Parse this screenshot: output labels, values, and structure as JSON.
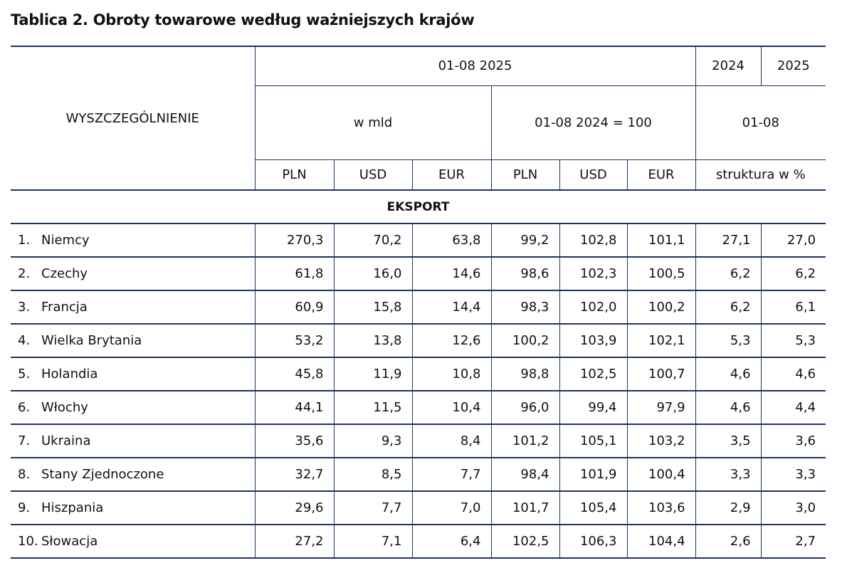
{
  "title": "Tablica 2. Obroty towarowe według ważniejszych krajów",
  "header": {
    "row_label": "WYSZCZEGÓLNIENIE",
    "period": "01-08 2025",
    "year_2024": "2024",
    "year_2025": "2025",
    "w_mld": "w mld",
    "index": "01-08 2024 = 100",
    "period_short": "01-08",
    "currencies": [
      "PLN",
      "USD",
      "EUR",
      "PLN",
      "USD",
      "EUR"
    ],
    "structure": "struktura w %"
  },
  "section": "EKSPORT",
  "rows": [
    {
      "no": "1.",
      "name": "Niemcy",
      "v": [
        "270,3",
        "70,2",
        "63,8",
        "99,2",
        "102,8",
        "101,1",
        "27,1",
        "27,0"
      ]
    },
    {
      "no": "2.",
      "name": "Czechy",
      "v": [
        "61,8",
        "16,0",
        "14,6",
        "98,6",
        "102,3",
        "100,5",
        "6,2",
        "6,2"
      ]
    },
    {
      "no": "3.",
      "name": "Francja",
      "v": [
        "60,9",
        "15,8",
        "14,4",
        "98,3",
        "102,0",
        "100,2",
        "6,2",
        "6,1"
      ]
    },
    {
      "no": "4.",
      "name": "Wielka Brytania",
      "v": [
        "53,2",
        "13,8",
        "12,6",
        "100,2",
        "103,9",
        "102,1",
        "5,3",
        "5,3"
      ]
    },
    {
      "no": "5.",
      "name": "Holandia",
      "v": [
        "45,8",
        "11,9",
        "10,8",
        "98,8",
        "102,5",
        "100,7",
        "4,6",
        "4,6"
      ]
    },
    {
      "no": "6.",
      "name": "Włochy",
      "v": [
        "44,1",
        "11,5",
        "10,4",
        "96,0",
        "99,4",
        "97,9",
        "4,6",
        "4,4"
      ]
    },
    {
      "no": "7.",
      "name": "Ukraina",
      "v": [
        "35,6",
        "9,3",
        "8,4",
        "101,2",
        "105,1",
        "103,2",
        "3,5",
        "3,6"
      ]
    },
    {
      "no": "8.",
      "name": "Stany Zjednoczone",
      "v": [
        "32,7",
        "8,5",
        "7,7",
        "98,4",
        "101,9",
        "100,4",
        "3,3",
        "3,3"
      ]
    },
    {
      "no": "9.",
      "name": "Hiszpania",
      "v": [
        "29,6",
        "7,7",
        "7,0",
        "101,7",
        "105,4",
        "103,6",
        "2,9",
        "3,0"
      ]
    },
    {
      "no": "10.",
      "name": "Słowacja",
      "v": [
        "27,2",
        "7,1",
        "6,4",
        "102,5",
        "106,3",
        "104,4",
        "2,6",
        "2,7"
      ]
    }
  ]
}
